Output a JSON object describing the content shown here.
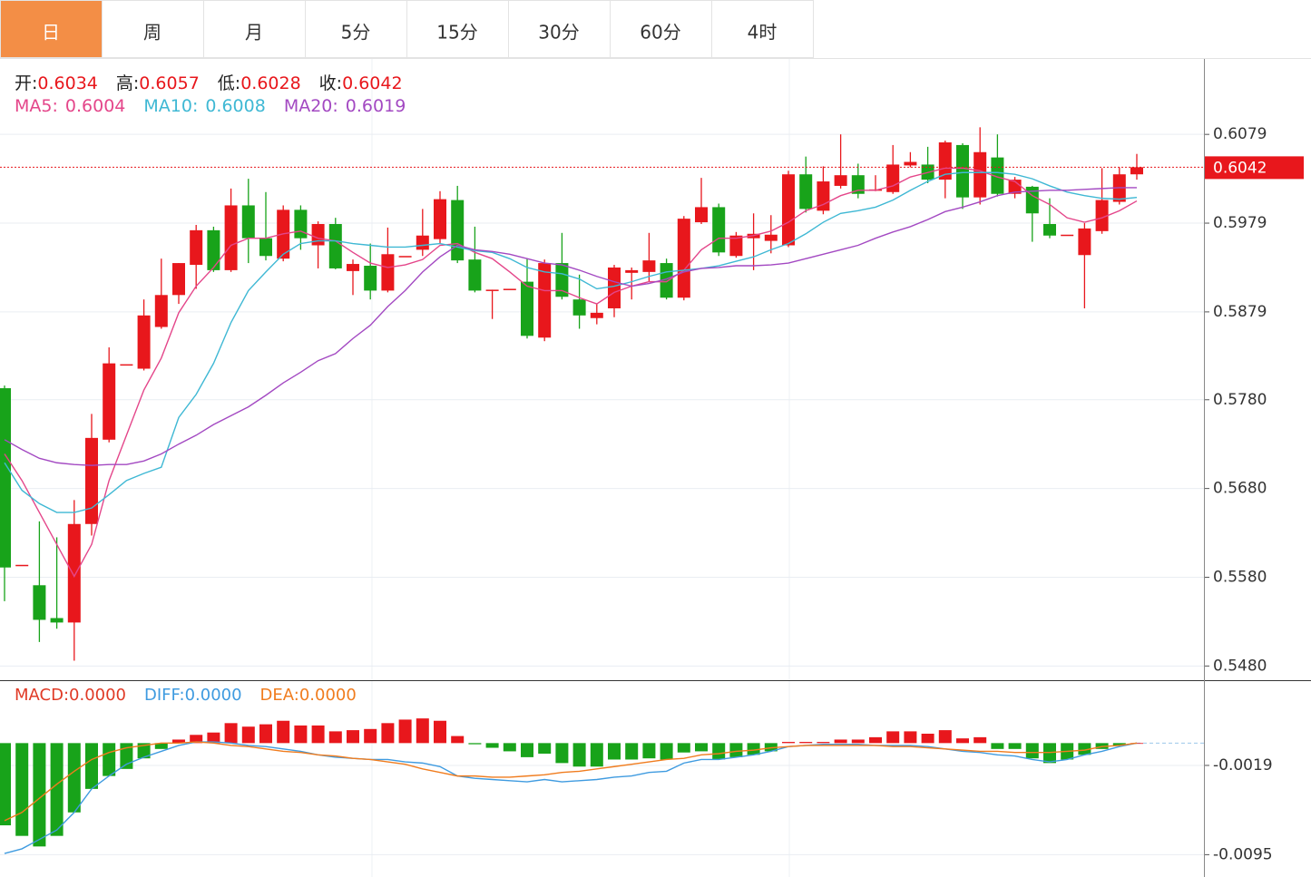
{
  "tabs": [
    "日",
    "周",
    "月",
    "5分",
    "15分",
    "30分",
    "60分",
    "4时"
  ],
  "active_tab": 0,
  "chart_data": [
    {
      "type": "candlestick",
      "ohlc_labels": [
        "开:",
        "高:",
        "低:",
        "收:"
      ],
      "up_color": "#e8171c",
      "down_color": "#18a31a",
      "ylim": [
        0.5464,
        0.6164
      ],
      "yticks": [
        {
          "value": 0.548,
          "label": "0.5480"
        },
        {
          "value": 0.558,
          "label": "0.5580"
        },
        {
          "value": 0.568,
          "label": "0.5680"
        },
        {
          "value": 0.578,
          "label": "0.5780"
        },
        0.5879,
        0.5979,
        0.6079
      ],
      "grid": true,
      "open": [
        0.5793,
        0.5594,
        0.5571,
        0.5534,
        0.5529,
        0.564,
        0.5735,
        0.582,
        0.5815,
        0.5862,
        0.5898,
        0.5932,
        0.5971,
        0.5926,
        0.5999,
        0.5962,
        0.5939,
        0.5994,
        0.5954,
        0.5978,
        0.5925,
        0.5931,
        0.5903,
        0.5942,
        0.5949,
        0.5961,
        0.6005,
        0.5938,
        0.5904,
        0.5905,
        0.5913,
        0.585,
        0.5934,
        0.5893,
        0.5872,
        0.5883,
        0.5923,
        0.5924,
        0.5934,
        0.5895,
        0.598,
        0.5997,
        0.5942,
        0.5962,
        0.5959,
        0.5954,
        0.6034,
        0.5993,
        0.6021,
        0.6033,
        0.6017,
        0.6014,
        0.6044,
        0.6045,
        0.6028,
        0.6067,
        0.6008,
        0.6053,
        0.6012,
        0.602,
        0.5978,
        0.5966,
        0.5943,
        0.597,
        0.6003,
        0.6034
      ],
      "high": [
        0.5796,
        0.5594,
        0.5643,
        0.5625,
        0.5667,
        0.5764,
        0.5839,
        0.582,
        0.5893,
        0.5939,
        0.5934,
        0.5977,
        0.5975,
        0.6018,
        0.6029,
        0.6014,
        0.5999,
        0.5999,
        0.5981,
        0.5985,
        0.5938,
        0.5956,
        0.5974,
        0.5942,
        0.5995,
        0.6015,
        0.6021,
        0.5975,
        0.5904,
        0.5905,
        0.5939,
        0.5938,
        0.5968,
        0.5921,
        0.5888,
        0.5932,
        0.5929,
        0.5968,
        0.5939,
        0.5987,
        0.603,
        0.6001,
        0.5969,
        0.599,
        0.5988,
        0.6038,
        0.6054,
        0.6043,
        0.6079,
        0.6046,
        0.6033,
        0.6067,
        0.6059,
        0.6065,
        0.6072,
        0.6069,
        0.6087,
        0.6079,
        0.6031,
        0.6021,
        0.6007,
        0.5966,
        0.5979,
        0.6041,
        0.6042,
        0.6057
      ],
      "low": [
        0.5553,
        0.5594,
        0.5507,
        0.5522,
        0.5486,
        0.5627,
        0.5732,
        0.582,
        0.5813,
        0.586,
        0.5888,
        0.5905,
        0.5924,
        0.5924,
        0.5934,
        0.5937,
        0.5936,
        0.5949,
        0.5928,
        0.5927,
        0.5898,
        0.5893,
        0.5901,
        0.5942,
        0.5942,
        0.5956,
        0.5934,
        0.5901,
        0.5871,
        0.5905,
        0.5849,
        0.5846,
        0.5893,
        0.586,
        0.5865,
        0.5873,
        0.5893,
        0.5913,
        0.5893,
        0.5892,
        0.5978,
        0.5942,
        0.594,
        0.5926,
        0.5945,
        0.5952,
        0.5991,
        0.5989,
        0.6018,
        0.6007,
        0.6015,
        0.6012,
        0.6042,
        0.6024,
        0.6007,
        0.5995,
        0.6,
        0.6009,
        0.6007,
        0.5958,
        0.5962,
        0.5966,
        0.5883,
        0.5967,
        0.6,
        0.6028
      ],
      "close": [
        0.5591,
        0.5594,
        0.5532,
        0.5529,
        0.564,
        0.5737,
        0.5821,
        0.582,
        0.5875,
        0.5898,
        0.5934,
        0.5971,
        0.5926,
        0.5999,
        0.5962,
        0.5942,
        0.5994,
        0.5962,
        0.5978,
        0.5928,
        0.5933,
        0.5903,
        0.5944,
        0.5942,
        0.5965,
        0.6006,
        0.5937,
        0.5903,
        0.5904,
        0.5905,
        0.5852,
        0.5934,
        0.5896,
        0.5875,
        0.5878,
        0.5929,
        0.5926,
        0.5937,
        0.5895,
        0.5984,
        0.5997,
        0.5946,
        0.5965,
        0.5967,
        0.5966,
        0.6034,
        0.5995,
        0.6026,
        0.6033,
        0.6012,
        0.6017,
        0.6045,
        0.6048,
        0.6028,
        0.607,
        0.6008,
        0.6059,
        0.6012,
        0.6028,
        0.599,
        0.5965,
        0.5966,
        0.5973,
        0.6005,
        0.6034,
        0.6042
      ],
      "overlays": [
        {
          "name": "MA5:",
          "color": "#e4468a",
          "values": [
            0.5719,
            0.5689,
            0.5653,
            0.5617,
            0.5581,
            0.5617,
            0.5689,
            0.574,
            0.5791,
            0.5827,
            0.5878,
            0.5908,
            0.5929,
            0.5954,
            0.5962,
            0.5962,
            0.5967,
            0.597,
            0.5962,
            0.5959,
            0.5946,
            0.5934,
            0.5929,
            0.5932,
            0.5938,
            0.5954,
            0.5956,
            0.5946,
            0.5939,
            0.5924,
            0.5908,
            0.5903,
            0.5903,
            0.5895,
            0.5888,
            0.5901,
            0.5908,
            0.5913,
            0.5913,
            0.5926,
            0.5949,
            0.5962,
            0.5962,
            0.5965,
            0.597,
            0.598,
            0.5993,
            0.6,
            0.601,
            0.6016,
            0.6016,
            0.6021,
            0.6031,
            0.6036,
            0.6041,
            0.6041,
            0.6038,
            0.6031,
            0.6026,
            0.601,
            0.6,
            0.5985,
            0.598,
            0.5985,
            0.5993,
            0.6004
          ]
        },
        {
          "name": "MA10:",
          "color": "#3fb8d4",
          "values": [
            0.5709,
            0.5678,
            0.5663,
            0.5653,
            0.5653,
            0.5658,
            0.5673,
            0.5689,
            0.5697,
            0.5704,
            0.576,
            0.5786,
            0.5821,
            0.5867,
            0.5903,
            0.5924,
            0.5944,
            0.5956,
            0.5959,
            0.5959,
            0.5956,
            0.5954,
            0.5952,
            0.5952,
            0.5954,
            0.5956,
            0.5952,
            0.5948,
            0.5946,
            0.5939,
            0.5929,
            0.5924,
            0.5922,
            0.5916,
            0.5905,
            0.5908,
            0.5913,
            0.5919,
            0.5924,
            0.5926,
            0.5928,
            0.5931,
            0.5936,
            0.5941,
            0.5949,
            0.5956,
            0.5967,
            0.598,
            0.599,
            0.5993,
            0.5997,
            0.6005,
            0.6016,
            0.6026,
            0.6034,
            0.6036,
            0.6036,
            0.6036,
            0.6034,
            0.6029,
            0.6021,
            0.6014,
            0.601,
            0.6007,
            0.6006,
            0.6008
          ]
        },
        {
          "name": "MA20:",
          "color": "#a349c2",
          "values": [
            0.5735,
            0.5724,
            0.5714,
            0.5709,
            0.5707,
            0.5706,
            0.5707,
            0.5707,
            0.5711,
            0.5719,
            0.573,
            0.574,
            0.5752,
            0.5762,
            0.5772,
            0.5785,
            0.5799,
            0.5811,
            0.5824,
            0.5832,
            0.5849,
            0.5864,
            0.5885,
            0.5903,
            0.5924,
            0.5941,
            0.5954,
            0.5949,
            0.5947,
            0.5944,
            0.5939,
            0.5934,
            0.5932,
            0.5926,
            0.5919,
            0.5913,
            0.5908,
            0.5911,
            0.5916,
            0.5924,
            0.5928,
            0.5929,
            0.5931,
            0.5931,
            0.5932,
            0.5934,
            0.5939,
            0.5944,
            0.5949,
            0.5954,
            0.5962,
            0.5969,
            0.5975,
            0.5983,
            0.5992,
            0.5997,
            0.6003,
            0.601,
            0.6014,
            0.6015,
            0.6016,
            0.6016,
            0.6017,
            0.6018,
            0.6019,
            0.6019
          ]
        }
      ]
    },
    {
      "type": "macd",
      "up_color": "#e8171c",
      "down_color": "#18a31a",
      "ylim": [
        -0.0114,
        0.0052
      ],
      "yticks": [
        -0.0019,
        -0.0095
      ],
      "grid": true,
      "series": [
        {
          "name": "MACD:",
          "color": "#e03a26",
          "legend_value": "0.0000",
          "values": [
            -0.007,
            -0.0079,
            -0.0088,
            -0.0079,
            -0.0059,
            -0.0039,
            -0.0028,
            -0.0022,
            -0.0013,
            -0.0005,
            0.0003,
            0.0007,
            0.0009,
            0.0017,
            0.0014,
            0.0016,
            0.0019,
            0.0015,
            0.0015,
            0.001,
            0.0011,
            0.0012,
            0.0017,
            0.002,
            0.0021,
            0.0019,
            0.0006,
            -0.0001,
            -0.0004,
            -0.0007,
            -0.0012,
            -0.0009,
            -0.0017,
            -0.002,
            -0.002,
            -0.0014,
            -0.0014,
            -0.0013,
            -0.0014,
            -0.0008,
            -0.0007,
            -0.0014,
            -0.0012,
            -0.001,
            -0.0007,
            0.0001,
            0.0001,
            0.0001,
            0.0003,
            0.0003,
            0.0005,
            0.001,
            0.001,
            0.0008,
            0.0011,
            0.0004,
            0.0005,
            -0.0005,
            -0.0005,
            -0.0013,
            -0.0017,
            -0.0014,
            -0.001,
            -0.0005,
            -0.0002,
            0
          ]
        },
        {
          "name": "DIFF:",
          "color": "#3f9be0",
          "legend_value": "0.0000",
          "values": [
            -0.0094,
            -0.009,
            -0.0082,
            -0.0074,
            -0.0059,
            -0.0039,
            -0.0028,
            -0.0018,
            -0.0012,
            -0.0007,
            -0.0002,
            0.0001,
            0.0001,
            0,
            -0.0002,
            -0.0003,
            -0.0005,
            -0.0007,
            -0.001,
            -0.0012,
            -0.0013,
            -0.0014,
            -0.0014,
            -0.0016,
            -0.0017,
            -0.002,
            -0.0028,
            -0.003,
            -0.0031,
            -0.0032,
            -0.0033,
            -0.0031,
            -0.0033,
            -0.0032,
            -0.0031,
            -0.0029,
            -0.0028,
            -0.0025,
            -0.0024,
            -0.0017,
            -0.0014,
            -0.0014,
            -0.0012,
            -0.001,
            -0.0007,
            -0.0003,
            -0.0002,
            -0.0001,
            -0.0001,
            -0.0001,
            -0.0002,
            -0.0002,
            -0.0002,
            -0.0003,
            -0.0005,
            -0.0007,
            -0.0008,
            -0.001,
            -0.0011,
            -0.0014,
            -0.0016,
            -0.0014,
            -0.001,
            -0.0007,
            -0.0003,
            0
          ]
        },
        {
          "name": "DEA:",
          "color": "#f07c1e",
          "legend_value": "0.0000",
          "values": [
            -0.0066,
            -0.0059,
            -0.0047,
            -0.0035,
            -0.0024,
            -0.0014,
            -0.0008,
            -0.0004,
            -0.0002,
            0,
            0,
            0.0001,
            0,
            -0.0002,
            -0.0003,
            -0.0005,
            -0.0007,
            -0.0008,
            -0.001,
            -0.0011,
            -0.0013,
            -0.0014,
            -0.0016,
            -0.0018,
            -0.0022,
            -0.0025,
            -0.0028,
            -0.0028,
            -0.0029,
            -0.0029,
            -0.0028,
            -0.0027,
            -0.0025,
            -0.0024,
            -0.0022,
            -0.002,
            -0.0018,
            -0.0016,
            -0.0014,
            -0.0013,
            -0.001,
            -0.0009,
            -0.0007,
            -0.0006,
            -0.0004,
            -0.0003,
            -0.0002,
            -0.0002,
            -0.0002,
            -0.0002,
            -0.0002,
            -0.0003,
            -0.0003,
            -0.0004,
            -0.0005,
            -0.0006,
            -0.0007,
            -0.0007,
            -0.0008,
            -0.0008,
            -0.0008,
            -0.0007,
            -0.0006,
            -0.0003,
            -0.0002,
            0
          ]
        }
      ]
    }
  ]
}
